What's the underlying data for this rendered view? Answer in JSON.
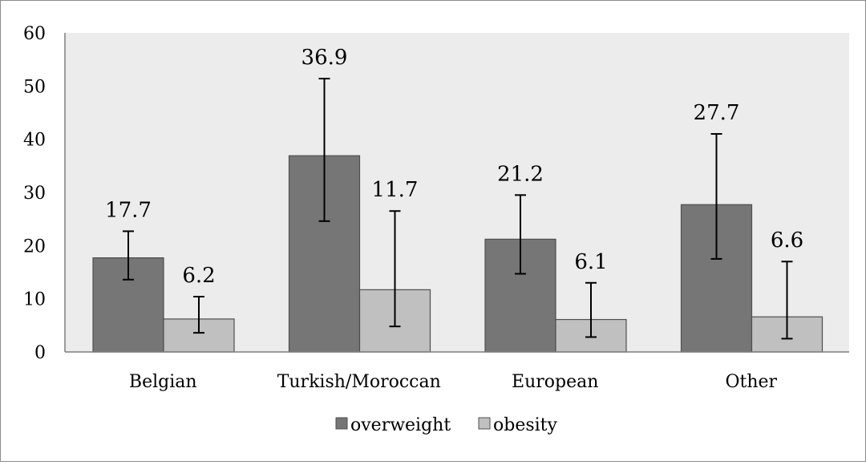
{
  "chart_data": {
    "type": "bar",
    "title": "",
    "xlabel": "",
    "ylabel": "",
    "categories": [
      "Belgian",
      "Turkish/Moroccan",
      "European",
      "Other"
    ],
    "series": [
      {
        "name": "overweight",
        "values": [
          17.7,
          36.9,
          21.2,
          27.7
        ],
        "error_low": [
          13.6,
          24.6,
          14.7,
          17.5
        ],
        "error_high": [
          22.7,
          51.4,
          29.5,
          41.0
        ],
        "color": "#767676"
      },
      {
        "name": "obesity",
        "values": [
          6.2,
          11.7,
          6.1,
          6.6
        ],
        "error_low": [
          3.6,
          4.8,
          2.8,
          2.5
        ],
        "error_high": [
          10.4,
          26.5,
          13.0,
          17.0
        ],
        "color": "#c0c0c0"
      }
    ],
    "data_labels": [
      [
        "17.7",
        "36.9",
        "21.2",
        "27.7"
      ],
      [
        "6.2",
        "11.7",
        "6.1",
        "6.6"
      ]
    ],
    "y_ticks": [
      "0",
      "10",
      "20",
      "30",
      "40",
      "50",
      "60"
    ],
    "ylim": [
      0,
      60
    ],
    "grid": false,
    "plot_background": "#ececec",
    "legend_position": "bottom"
  }
}
